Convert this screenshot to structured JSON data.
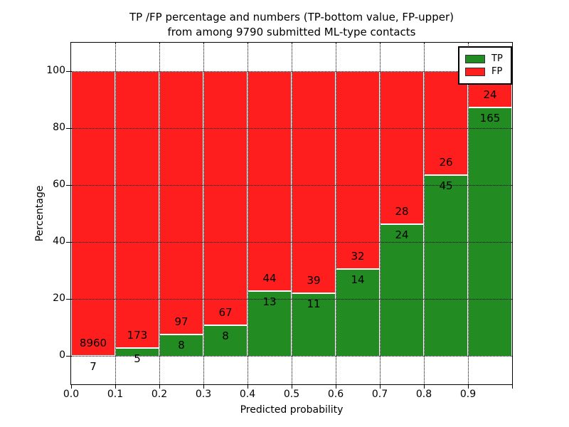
{
  "chart_data": {
    "type": "bar",
    "stacked": true,
    "title": "TP /FP percentage and numbers (TP-bottom value, FP-upper)\nfrom among 9790 submitted ML-type contacts",
    "title_lines": [
      "TP /FP percentage and numbers (TP-bottom value, FP-upper)",
      "from among 9790 submitted ML-type contacts"
    ],
    "xlabel": "Predicted probability",
    "ylabel": "Percentage",
    "xlim": [
      0.0,
      1.0
    ],
    "ylim": [
      -10,
      110
    ],
    "xtick_labels": [
      "0.0",
      "0.1",
      "0.2",
      "0.3",
      "0.4",
      "0.5",
      "0.6",
      "0.7",
      "0.8",
      "0.9"
    ],
    "ytick_values": [
      0,
      20,
      40,
      60,
      80,
      100
    ],
    "grid": true,
    "grid_style": "dotted",
    "total_contacts": 9790,
    "colors": {
      "tp": "#228B22",
      "fp": "#FF1E1E",
      "bar_edge": "#ffffff",
      "grid": "#000000"
    },
    "legend": {
      "position": "upper right",
      "entries": [
        {
          "label": "TP",
          "color": "#228B22"
        },
        {
          "label": "FP",
          "color": "#FF1E1E"
        }
      ]
    },
    "bars": [
      {
        "bin_start": 0.0,
        "bin_end": 0.1,
        "tp_count": 7,
        "fp_count": 8960,
        "tp_pct": 0.08,
        "fp_pct": 99.92
      },
      {
        "bin_start": 0.1,
        "bin_end": 0.2,
        "tp_count": 5,
        "fp_count": 173,
        "tp_pct": 2.81,
        "fp_pct": 97.19
      },
      {
        "bin_start": 0.2,
        "bin_end": 0.3,
        "tp_count": 8,
        "fp_count": 97,
        "tp_pct": 7.62,
        "fp_pct": 92.38
      },
      {
        "bin_start": 0.3,
        "bin_end": 0.4,
        "tp_count": 8,
        "fp_count": 67,
        "tp_pct": 10.67,
        "fp_pct": 89.33
      },
      {
        "bin_start": 0.4,
        "bin_end": 0.5,
        "tp_count": 13,
        "fp_count": 44,
        "tp_pct": 22.81,
        "fp_pct": 77.19
      },
      {
        "bin_start": 0.5,
        "bin_end": 0.6,
        "tp_count": 11,
        "fp_count": 39,
        "tp_pct": 22.0,
        "fp_pct": 78.0
      },
      {
        "bin_start": 0.6,
        "bin_end": 0.7,
        "tp_count": 14,
        "fp_count": 32,
        "tp_pct": 30.43,
        "fp_pct": 69.57
      },
      {
        "bin_start": 0.7,
        "bin_end": 0.8,
        "tp_count": 24,
        "fp_count": 28,
        "tp_pct": 46.15,
        "fp_pct": 53.85
      },
      {
        "bin_start": 0.8,
        "bin_end": 0.9,
        "tp_count": 45,
        "fp_count": 26,
        "tp_pct": 63.38,
        "fp_pct": 36.62
      },
      {
        "bin_start": 0.9,
        "bin_end": 1.0,
        "tp_count": 165,
        "fp_count": 24,
        "tp_pct": 87.3,
        "fp_pct": 12.7
      }
    ]
  }
}
